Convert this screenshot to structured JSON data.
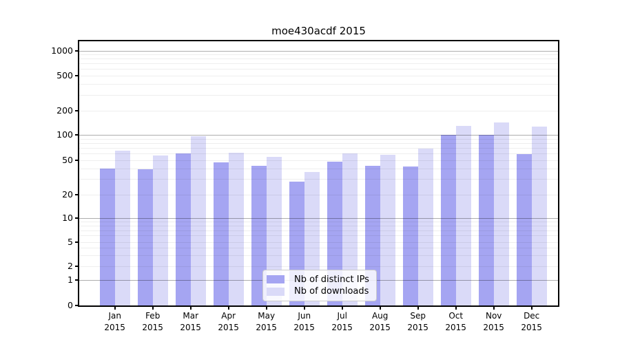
{
  "chart_data": {
    "type": "bar",
    "title": "moe430acdf 2015",
    "scale": "symlog",
    "grid": true,
    "categories": [
      "Jan 2015",
      "Feb 2015",
      "Mar 2015",
      "Apr 2015",
      "May 2015",
      "Jun 2015",
      "Jul 2015",
      "Aug 2015",
      "Sep 2015",
      "Oct 2015",
      "Nov 2015",
      "Dec 2015"
    ],
    "series": [
      {
        "name": "Nb of distinct IPs",
        "color": "#a5a5f2",
        "fill": "rgba(130,130,237,0.72)",
        "values": [
          40,
          39,
          60,
          47,
          43,
          28,
          48,
          43,
          42,
          100,
          100,
          59
        ]
      },
      {
        "name": "Nb of downloads",
        "color": "#dadaf8",
        "fill": "rgba(193,193,243,0.6)",
        "values": [
          65,
          57,
          97,
          61,
          54,
          36,
          60,
          58,
          68,
          131,
          143,
          127
        ]
      }
    ],
    "y_ticks": [
      0,
      1,
      2,
      5,
      10,
      20,
      50,
      100,
      200,
      500,
      1000
    ],
    "ylim": [
      0,
      1200
    ],
    "legend": {
      "position": "lower center",
      "entries": [
        "Nb of distinct IPs",
        "Nb of downloads"
      ]
    }
  }
}
